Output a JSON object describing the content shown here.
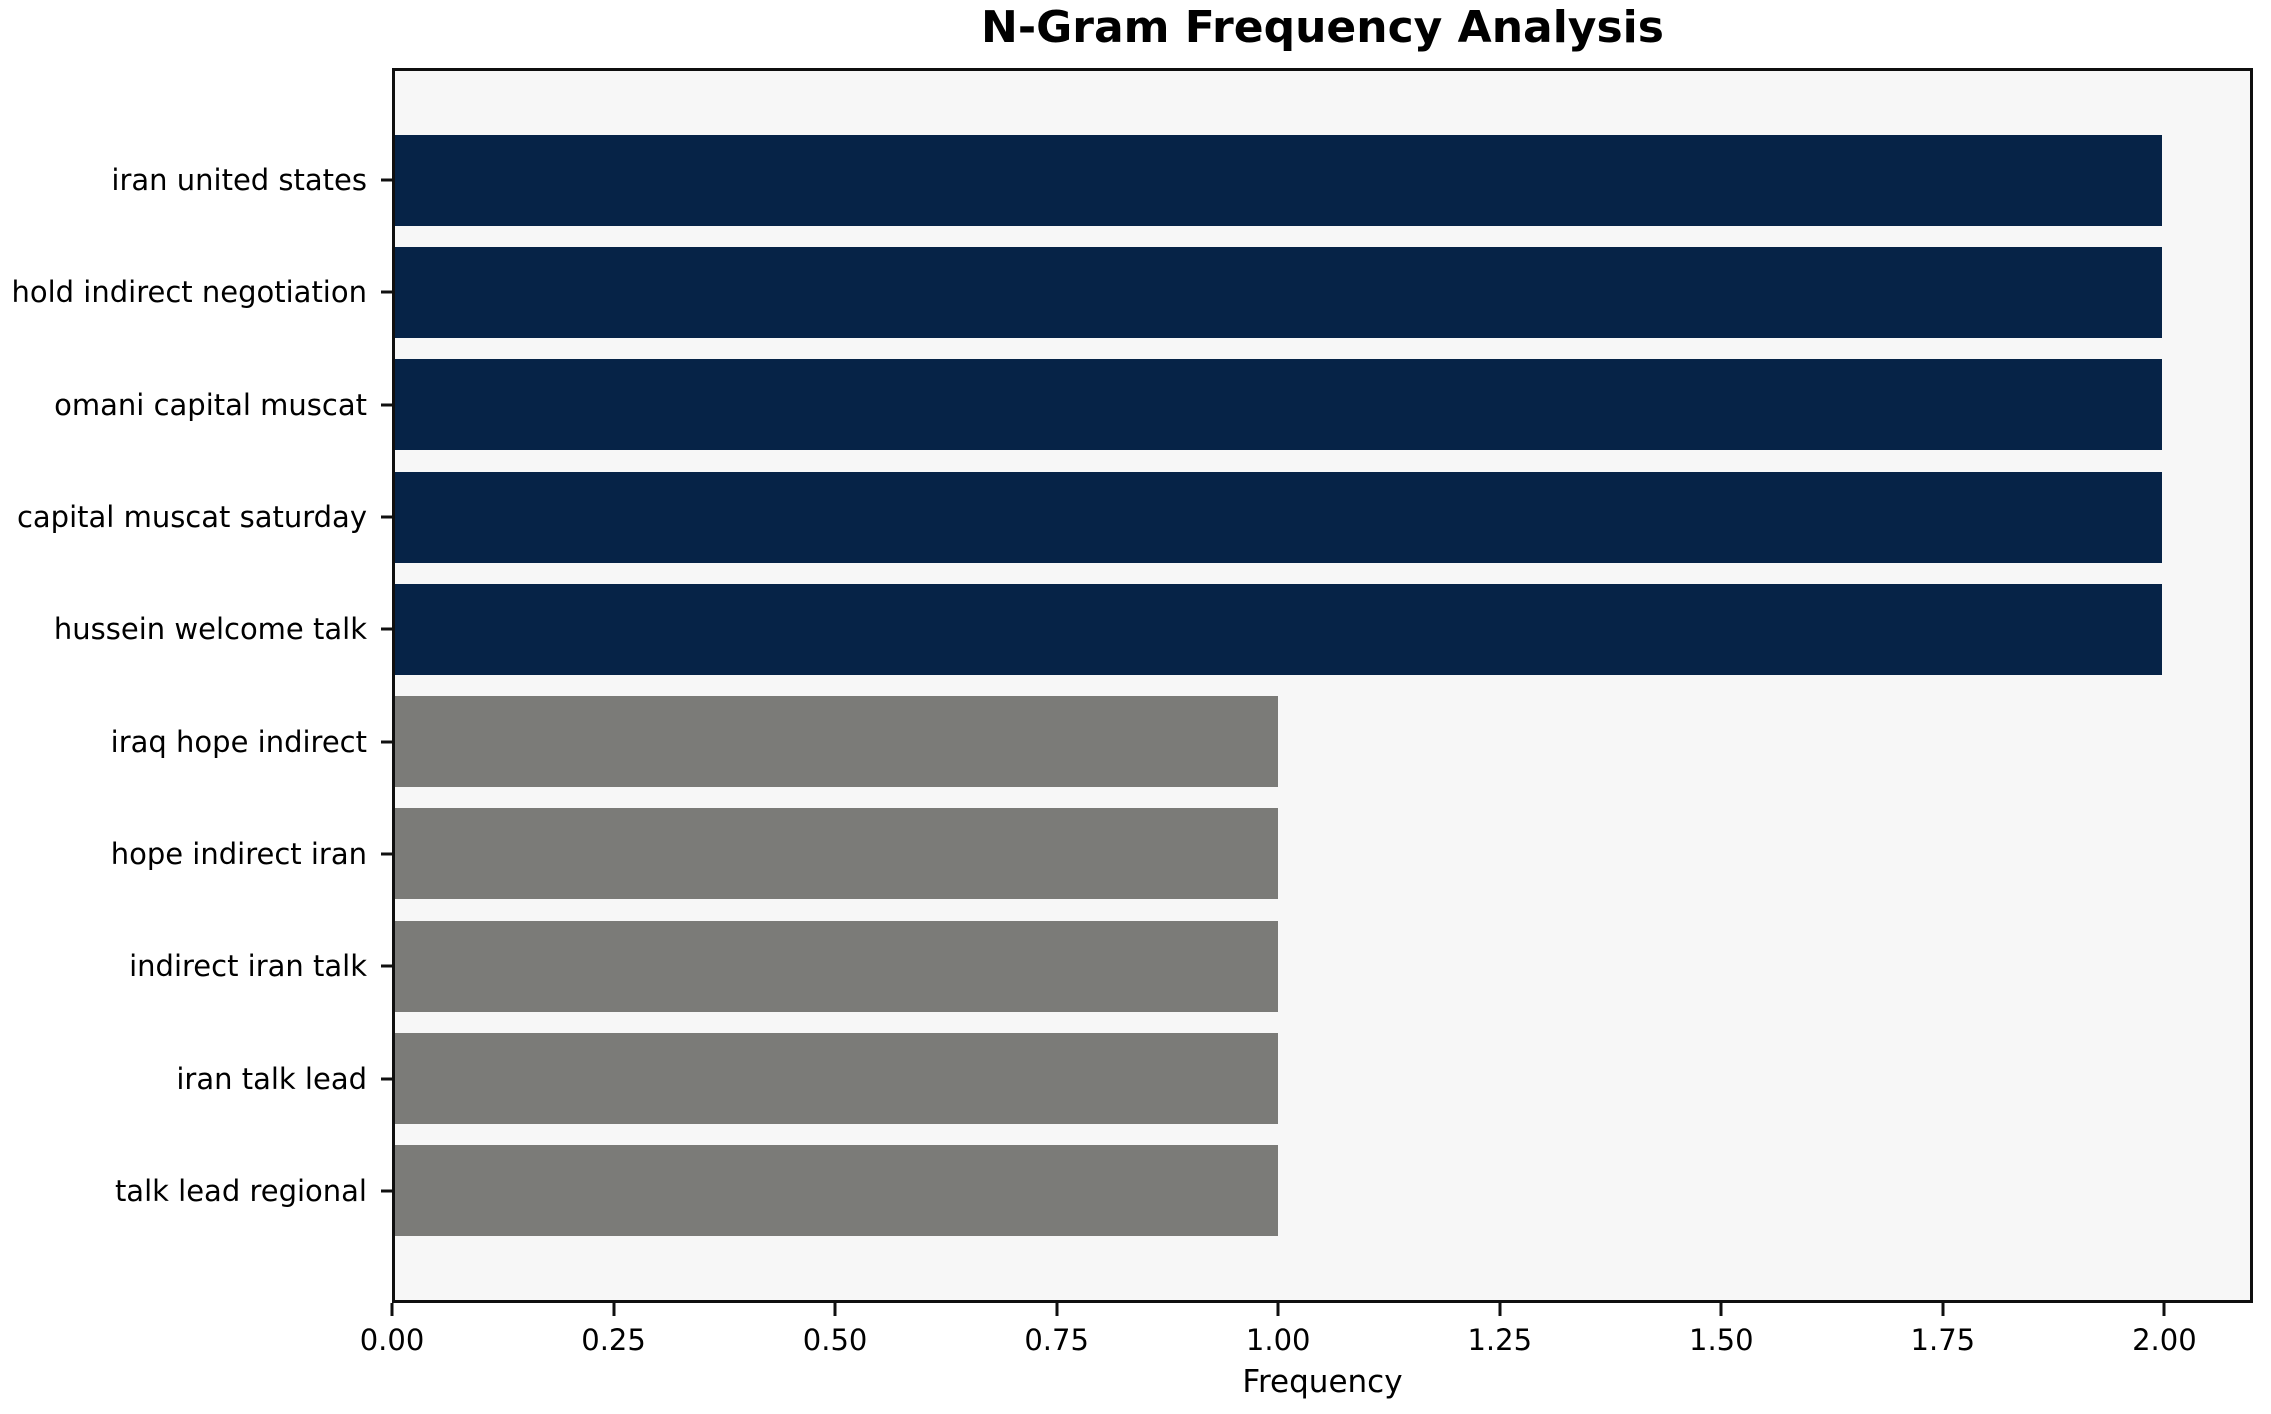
{
  "chart_data": {
    "type": "bar",
    "orientation": "horizontal",
    "title": "N-Gram Frequency Analysis",
    "xlabel": "Frequency",
    "categories": [
      "iran united states",
      "hold indirect negotiation",
      "omani capital muscat",
      "capital muscat saturday",
      "hussein welcome talk",
      "iraq hope indirect",
      "hope indirect iran",
      "indirect iran talk",
      "iran talk lead",
      "talk lead regional"
    ],
    "values": [
      2,
      2,
      2,
      2,
      2,
      1,
      1,
      1,
      1,
      1
    ],
    "bar_colors": [
      "#062347",
      "#062347",
      "#062347",
      "#062347",
      "#062347",
      "#7b7b78",
      "#7b7b78",
      "#7b7b78",
      "#7b7b78",
      "#7b7b78"
    ],
    "xlim": [
      0,
      2.1
    ],
    "xticks": [
      {
        "value": 0.0,
        "label": "0.00"
      },
      {
        "value": 0.25,
        "label": "0.25"
      },
      {
        "value": 0.5,
        "label": "0.50"
      },
      {
        "value": 0.75,
        "label": "0.75"
      },
      {
        "value": 1.0,
        "label": "1.00"
      },
      {
        "value": 1.25,
        "label": "1.25"
      },
      {
        "value": 1.5,
        "label": "1.50"
      },
      {
        "value": 1.75,
        "label": "1.75"
      },
      {
        "value": 2.0,
        "label": "2.00"
      }
    ],
    "colors": {
      "highlight": "#062347",
      "muted": "#7b7b78",
      "plot_background": "#f7f7f7",
      "figure_background": "#ffffff",
      "spine": "#0f0f0f"
    },
    "grid": false,
    "legend": false
  }
}
